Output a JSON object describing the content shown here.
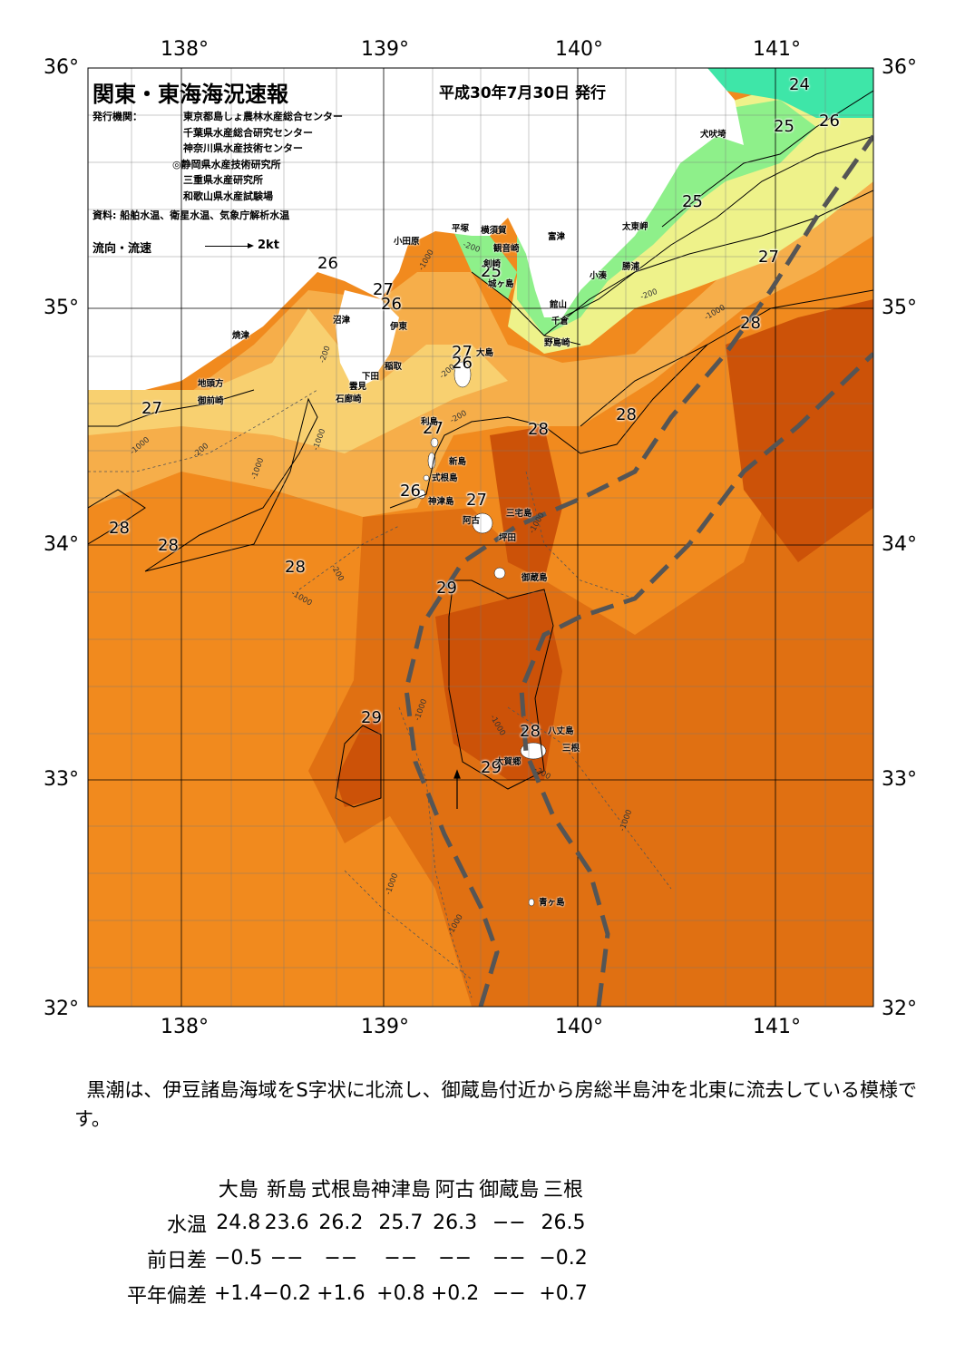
{
  "header": {
    "title": "関東・東海海況速報",
    "date": "平成30年7月30日 発行",
    "issuer_label": "発行機関：",
    "issuers": [
      "東京都島しょ農林水産総合センター",
      "千葉県水産総合研究センター",
      "神奈川県水産技術センター",
      "◎静岡県水産技術研究所",
      "三重県水産研究所",
      "和歌山県水産試験場"
    ],
    "source": "資料: 船舶水温、衛星水温、気象庁解析水温",
    "flow_label": "流向・流速",
    "flow_unit": "2kt"
  },
  "axes": {
    "lon_labels": [
      "138°",
      "139°",
      "140°",
      "141°"
    ],
    "lat_labels": [
      "36°",
      "35°",
      "34°",
      "33°",
      "32°"
    ]
  },
  "map": {
    "isotherm_labels": [
      "24",
      "25",
      "26",
      "25",
      "27",
      "26",
      "27",
      "26",
      "25",
      "28",
      "27",
      "26",
      "27",
      "28",
      "28",
      "27",
      "26",
      "27",
      "26",
      "28",
      "27",
      "28",
      "28",
      "29",
      "29",
      "28",
      "29"
    ],
    "place_names": [
      "犬吠埼",
      "太東岬",
      "勝浦",
      "小湊",
      "富津",
      "館山",
      "千倉",
      "野島崎",
      "横須賀",
      "観音崎",
      "剣崎",
      "城ヶ島",
      "平塚",
      "小田原",
      "大島",
      "稲取",
      "下田",
      "伊東",
      "沼津",
      "焼津",
      "地頭方",
      "御前崎",
      "雲見",
      "石廊崎",
      "利島",
      "新島",
      "式根島",
      "神津島",
      "阿古",
      "三宅島",
      "坪田",
      "御蔵島",
      "八丈島",
      "三根",
      "大賀郷",
      "青ヶ島"
    ],
    "depth_label": "-1000",
    "depth_label_2": "-200",
    "colors": {
      "t24": "#3ee6a8",
      "t25": "#8ef08a",
      "t26": "#eef28a",
      "t27": "#f8d070",
      "t27b": "#f6ae4a",
      "t28": "#f18a1e",
      "t29": "#e07012",
      "t29b": "#cc5208",
      "kuroshio": "#555555"
    }
  },
  "summary": "黒潮は、伊豆諸島海域をS字状に北流し、御蔵島付近から房総半島沖を北東に流去している模様です。",
  "table": {
    "columns": [
      "大島",
      "新島",
      "式根島",
      "神津島",
      "阿古",
      "御蔵島",
      "三根"
    ],
    "rows": [
      {
        "label": "水温",
        "values": [
          "24.8",
          "23.6",
          "26.2",
          "25.7",
          "26.3",
          "−−",
          "26.5"
        ]
      },
      {
        "label": "前日差",
        "values": [
          "−0.5",
          "−−",
          "−−",
          "−−",
          "−−",
          "−−",
          "−0.2"
        ]
      },
      {
        "label": "平年偏差",
        "values": [
          "+1.4",
          "−0.2",
          "+1.6",
          "+0.8",
          "+0.2",
          "−−",
          "+0.7"
        ]
      }
    ]
  }
}
